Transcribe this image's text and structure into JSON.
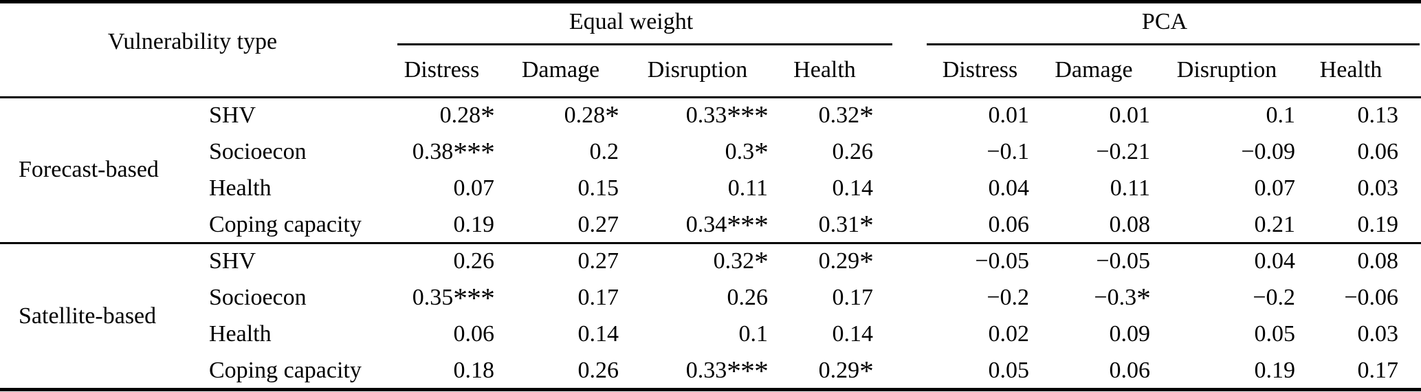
{
  "page": {
    "background": "#ffffff",
    "text_color": "#000000",
    "rule_color": "#000000"
  },
  "table": {
    "headers": {
      "vulnerability_type": "Vulnerability type",
      "equal_weight": "Equal weight",
      "pca": "PCA",
      "sub_equal_weight": [
        "Distress",
        "Damage",
        "Disruption",
        "Health"
      ],
      "sub_pca": [
        "Distress",
        "Damage",
        "Disruption",
        "Health"
      ]
    },
    "sections": [
      {
        "group": "Forecast-based",
        "rows": [
          {
            "label": "SHV",
            "ew": [
              "0.28*",
              "0.28*",
              "0.33***",
              "0.32*"
            ],
            "pca": [
              "0.01",
              "0.01",
              "0.1",
              "0.13"
            ]
          },
          {
            "label": "Socioecon",
            "ew": [
              "0.38***",
              "0.2",
              "0.3*",
              "0.26"
            ],
            "pca": [
              "−0.1",
              "−0.21",
              "−0.09",
              "0.06"
            ]
          },
          {
            "label": "Health",
            "ew": [
              "0.07",
              "0.15",
              "0.11",
              "0.14"
            ],
            "pca": [
              "0.04",
              "0.11",
              "0.07",
              "0.03"
            ]
          },
          {
            "label": "Coping capacity",
            "ew": [
              "0.19",
              "0.27",
              "0.34***",
              "0.31*"
            ],
            "pca": [
              "0.06",
              "0.08",
              "0.21",
              "0.19"
            ]
          }
        ]
      },
      {
        "group": "Satellite-based",
        "rows": [
          {
            "label": "SHV",
            "ew": [
              "0.26",
              "0.27",
              "0.32*",
              "0.29*"
            ],
            "pca": [
              "−0.05",
              "−0.05",
              "0.04",
              "0.08"
            ]
          },
          {
            "label": "Socioecon",
            "ew": [
              "0.35***",
              "0.17",
              "0.26",
              "0.17"
            ],
            "pca": [
              "−0.2",
              "−0.3*",
              "−0.2",
              "−0.06"
            ]
          },
          {
            "label": "Health",
            "ew": [
              "0.06",
              "0.14",
              "0.1",
              "0.14"
            ],
            "pca": [
              "0.02",
              "0.09",
              "0.05",
              "0.03"
            ]
          },
          {
            "label": "Coping capacity",
            "ew": [
              "0.18",
              "0.26",
              "0.33***",
              "0.29*"
            ],
            "pca": [
              "0.05",
              "0.06",
              "0.19",
              "0.17"
            ]
          }
        ]
      }
    ]
  },
  "chart_data": {
    "type": "table",
    "column_groups": [
      "Equal weight",
      "PCA"
    ],
    "columns": [
      "Vulnerability type",
      "",
      "Equal weight Distress",
      "Equal weight Damage",
      "Equal weight Disruption",
      "Equal weight Health",
      "PCA Distress",
      "PCA Damage",
      "PCA Disruption",
      "PCA Health"
    ],
    "rows": [
      [
        "Forecast-based",
        "SHV",
        "0.28*",
        "0.28*",
        "0.33***",
        "0.32*",
        "0.01",
        "0.01",
        "0.1",
        "0.13"
      ],
      [
        "Forecast-based",
        "Socioecon",
        "0.38***",
        "0.2",
        "0.3*",
        "0.26",
        "−0.1",
        "−0.21",
        "−0.09",
        "0.06"
      ],
      [
        "Forecast-based",
        "Health",
        "0.07",
        "0.15",
        "0.11",
        "0.14",
        "0.04",
        "0.11",
        "0.07",
        "0.03"
      ],
      [
        "Forecast-based",
        "Coping capacity",
        "0.19",
        "0.27",
        "0.34***",
        "0.31*",
        "0.06",
        "0.08",
        "0.21",
        "0.19"
      ],
      [
        "Satellite-based",
        "SHV",
        "0.26",
        "0.27",
        "0.32*",
        "0.29*",
        "−0.05",
        "−0.05",
        "0.04",
        "0.08"
      ],
      [
        "Satellite-based",
        "Socioecon",
        "0.35***",
        "0.17",
        "0.26",
        "0.17",
        "−0.2",
        "−0.3*",
        "−0.2",
        "−0.06"
      ],
      [
        "Satellite-based",
        "Health",
        "0.06",
        "0.14",
        "0.1",
        "0.14",
        "0.02",
        "0.09",
        "0.05",
        "0.03"
      ],
      [
        "Satellite-based",
        "Coping capacity",
        "0.18",
        "0.26",
        "0.33***",
        "0.29*",
        "0.05",
        "0.06",
        "0.19",
        "0.17"
      ]
    ]
  }
}
